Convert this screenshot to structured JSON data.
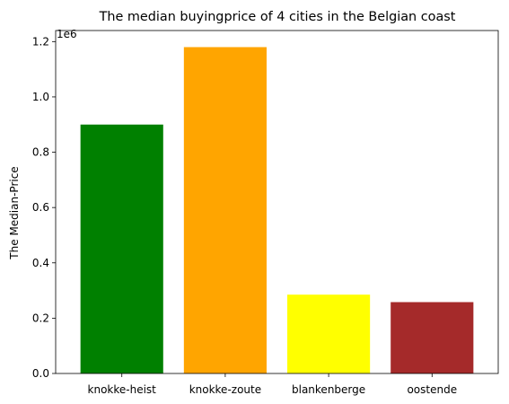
{
  "chart_data": {
    "type": "bar",
    "title": "The median buyingprice of 4 cities in the Belgian coast",
    "xlabel": "",
    "ylabel": "The Median-Price",
    "offset_label": "1e6",
    "categories": [
      "knokke-heist",
      "knokke-zoute",
      "blankenberge",
      "oostende"
    ],
    "values": [
      900000,
      1180000,
      285000,
      258000
    ],
    "colors": [
      "#008000",
      "#ffa500",
      "#ffff00",
      "#a52a2a"
    ],
    "ylim": [
      0,
      1240000
    ],
    "yticks": [
      0,
      200000,
      400000,
      600000,
      800000,
      1000000,
      1200000
    ],
    "ytick_labels": [
      "0.0",
      "0.2",
      "0.4",
      "0.6",
      "0.8",
      "1.0",
      "1.2"
    ],
    "grid": false,
    "legend": "none"
  }
}
